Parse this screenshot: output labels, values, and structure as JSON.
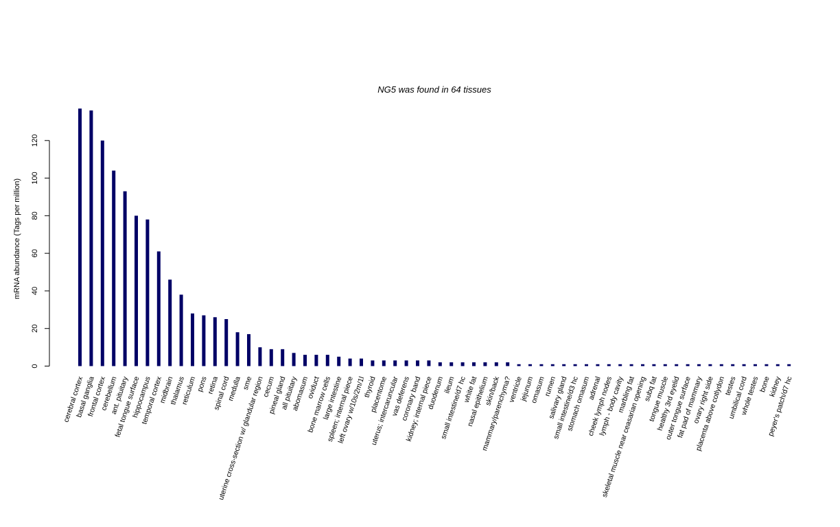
{
  "chart_data": {
    "type": "bar",
    "title": "NG5  was found in  64  tissues",
    "xlabel": "",
    "ylabel": "mRNA abundance (Tags per million)",
    "ylim": [
      0,
      140
    ],
    "yticks": [
      0,
      20,
      40,
      60,
      80,
      100,
      120
    ],
    "grid": false,
    "bar_color": "#000066",
    "categories": [
      "cerebral cortex",
      "basal ganglia",
      "frontal cortex",
      "cerebellum",
      "ant. pituitary",
      "fetal tongue surface",
      "hippocampus",
      "temporal cortex",
      "midbrain",
      "thalamus",
      "reticulum",
      "pons",
      "retina",
      "spinal cord",
      "medulla",
      "sme",
      "uterine cross-section w/ glandular region",
      "cecum",
      "pineal gland",
      "all pituitary",
      "abomasum",
      "oviduct",
      "bone marrow cells",
      "large intestine",
      "spleen; internal piece",
      "left ovary w/10s/2m/1l",
      "thyroid",
      "placentome",
      "uterus; intercaruncular",
      "vas deferens",
      "coronary band",
      "kidney; internal piece",
      "duodenum",
      "ileum",
      "small intestine/d7 hc",
      "white fat",
      "nasal epithelium",
      "skin/back",
      "mammary/parenchyma?",
      "ventricle",
      "jejunum",
      "omasum",
      "rumen",
      "salivary gland",
      "small intestine/d3 hc",
      "stomach omasum",
      "adrenal",
      "cheek lymph nodes",
      "lymph - body cavity",
      "marbling fat",
      "skeletal muscle near ceasarian opening",
      "subq fat",
      "tongue muscle",
      "healthy 3rd eyelid",
      "outer tongue surface",
      "fat pad of mammary",
      "ovary right side",
      "placenta above cotlydon",
      "testes",
      "umbilical cord",
      "whole testes",
      "bone",
      "kidney",
      "peyer's patch/d7 hc"
    ],
    "values": [
      137,
      136,
      120,
      104,
      93,
      80,
      78,
      61,
      46,
      38,
      28,
      27,
      26,
      25,
      18,
      17,
      10,
      9,
      9,
      7,
      6,
      6,
      6,
      5,
      4,
      4,
      3,
      3,
      3,
      3,
      3,
      3,
      2,
      2,
      2,
      2,
      2,
      2,
      2,
      1,
      1,
      1,
      1,
      1,
      1,
      1,
      1,
      1,
      1,
      1,
      1,
      1,
      1,
      1,
      1,
      1,
      1,
      1,
      1,
      1,
      1,
      1,
      1,
      1
    ]
  }
}
